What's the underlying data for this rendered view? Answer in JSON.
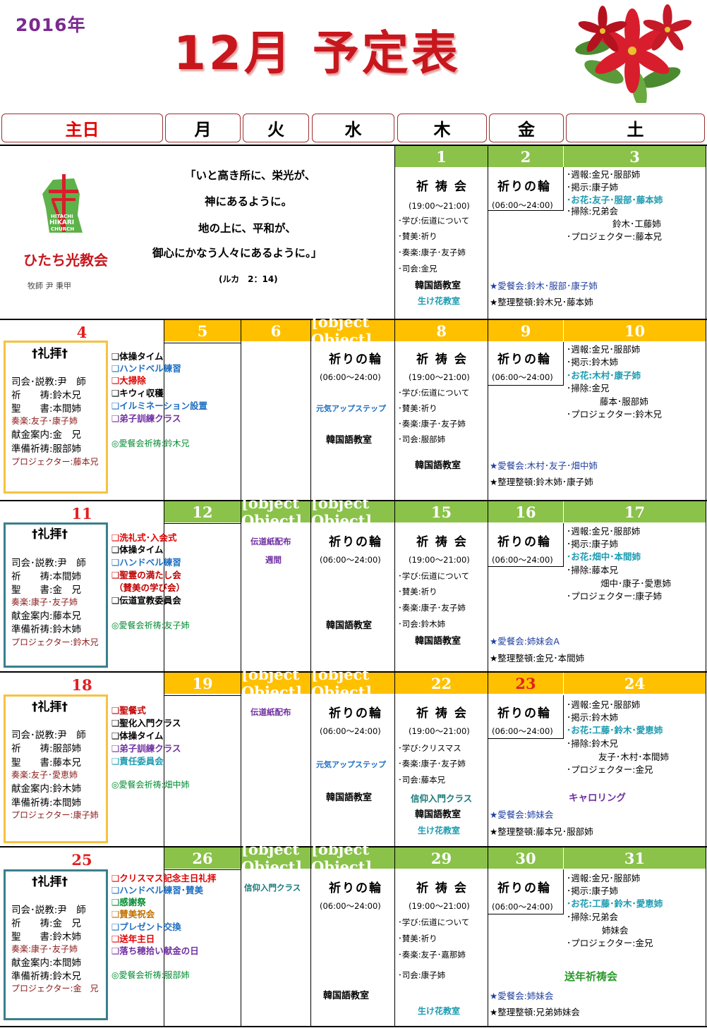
{
  "header": {
    "year": "2016年",
    "title": "12月 予定表"
  },
  "day_headers": [
    "主日",
    "月",
    "火",
    "水",
    "木",
    "金",
    "土"
  ],
  "verse": {
    "lines": [
      "「いと高き所に、栄光が、",
      "神にあるように。",
      "地の上に、平和が、",
      "御心にかなう人々にあるように。」"
    ],
    "ref": "(ルカ　2：14)"
  },
  "church": {
    "name": "ひたち光教会",
    "pastor": "牧師 尹 秉甲",
    "logo_text1": "HITACHI",
    "logo_text2": "HIKARI",
    "logo_text3": "CHURCH"
  },
  "week1": {
    "d1": "1",
    "d2": "2",
    "d3": "3",
    "thu": {
      "title": "祈 祷 会",
      "time": "(19:00～21:00)",
      "a": "･学び:伝道について",
      "b": "･賛美:祈り",
      "c": "･奏楽:康子･友子姉",
      "d": "･司会:金兄",
      "e": "韓国語教室",
      "f": "生け花教室"
    },
    "fri": {
      "title": "祈りの輪",
      "time": "(06:00～24:00)",
      "agape": "★愛餐会:鈴木･服部･康子姉",
      "clean": "★整理整頓:鈴木兄･藤本姉"
    },
    "sat": {
      "a": "･週報:金兄･服部姉",
      "b": "･掲示:康子姉",
      "c": "･お花:友子･服部･藤本姉",
      "d": "･掃除:兄弟会",
      "e": "鈴木･工藤姉",
      "f": "･プロジェクター:藤本兄"
    }
  },
  "week2": {
    "sun": "4",
    "mon": "5",
    "tue": "6",
    "wed": {
      "title": "祈りの輪",
      "time": "(06:00～24:00)",
      "genki": "元気アップステップ",
      "korean": "韓国語教室"
    },
    "thu_n": "8",
    "fri_n": "9",
    "sat_n": "10",
    "worship": {
      "title": "†礼拝†",
      "a": "司会･説教:尹　師",
      "b": "祈　　祷:鈴木兄",
      "c": "聖　　書:本間姉",
      "d": "奏楽:友子･康子姉",
      "e": "献金案内:金　兄",
      "f": "準備祈祷:服部姉",
      "g": "プロジェクター:藤本兄"
    },
    "mon_items": [
      "❑体操タイム",
      "❑ハンドベル練習",
      "❑大掃除",
      "❑キウィ収穫",
      "❑イルミネーション設置",
      "❑弟子訓練クラス"
    ],
    "mon_pray": "◎愛餐会祈祷:鈴木兄",
    "thu": {
      "title": "祈 祷 会",
      "time": "(19:00～21:00)",
      "a": "･学び:伝道について",
      "b": "･賛美:祈り",
      "c": "･奏楽:康子･友子姉",
      "d": "･司会:服部姉",
      "e": "韓国語教室"
    },
    "fri": {
      "title": "祈りの輪",
      "time": "(06:00～24:00)",
      "agape": "★愛餐会:木村･友子･畑中姉",
      "clean": "★整理整頓:鈴木姉･康子姉"
    },
    "sat": {
      "a": "･週報:金兄･服部姉",
      "b": "･掲示:鈴木姉",
      "c": "･お花:木村･康子姉",
      "d": "･掃除:金兄",
      "e": "藤本･服部姉",
      "f": "･プロジェクター:鈴木兄"
    }
  },
  "week3": {
    "sun": "11",
    "mon": "12",
    "tue": {
      "a": "伝道紙配布",
      "b": "週間"
    },
    "wed": {
      "title": "祈りの輪",
      "time": "(06:00～24:00)",
      "korean": "韓国語教室"
    },
    "thu_n": "15",
    "fri_n": "16",
    "sat_n": "17",
    "worship": {
      "title": "†礼拝†",
      "a": "司会･説教:尹　師",
      "b": "祈　　祷:本間姉",
      "c": "聖　　書:金　兄",
      "d": "奏楽:康子･友子姉",
      "e": "献金案内:藤本兄",
      "f": "準備祈祷:鈴木姉",
      "g": "プロジェクター:鈴木兄"
    },
    "mon_items": [
      "❑洗礼式･入会式",
      "❑体操タイム",
      "❑ハンドベル練習",
      "❑聖霊の満たし会",
      "（賛美の学び会）",
      "❑伝道宣教委員会"
    ],
    "mon_pray": "◎愛餐会祈祷:友子姉",
    "thu": {
      "title": "祈 祷 会",
      "time": "(19:00～21:00)",
      "a": "･学び:伝道について",
      "b": "･賛美:祈り",
      "c": "･奏楽:康子･友子姉",
      "d": "･司会:鈴木姉",
      "e": "韓国語教室"
    },
    "fri": {
      "title": "祈りの輪",
      "time": "(06:00～24:00)",
      "agape": "★愛餐会:姉妹会A",
      "clean": "★整理整頓:金兄･本間姉"
    },
    "sat": {
      "a": "･週報:金兄･服部姉",
      "b": "･掲示:康子姉",
      "c": "･お花:畑中･本間姉",
      "d": "･掃除:藤本兄",
      "e": "畑中･康子･愛恵姉",
      "f": "･プロジェクター:康子姉"
    }
  },
  "week4": {
    "sun": "18",
    "mon": "19",
    "tue": {
      "a": "伝道紙配布"
    },
    "wed": {
      "title": "祈りの輪",
      "time": "(06:00～24:00)",
      "genki": "元気アップステップ",
      "korean": "韓国語教室"
    },
    "thu_n": "22",
    "fri_n": "23",
    "sat_n": "24",
    "worship": {
      "title": "†礼拝†",
      "a": "司会･説教:尹　師",
      "b": "祈　　祷:服部姉",
      "c": "聖　　書:藤本兄",
      "d": "奏楽:友子･愛恵姉",
      "e": "献金案内:鈴木姉",
      "f": "準備祈祷:本間姉",
      "g": "プロジェクター:康子姉"
    },
    "mon_items": [
      "❑聖餐式",
      "❑聖化入門クラス",
      "❑体操タイム",
      "❑弟子訓練クラス",
      "❑責任委員会"
    ],
    "mon_pray": "◎愛餐会祈祷:畑中姉",
    "thu": {
      "title": "祈 祷 会",
      "time": "(19:00～21:00)",
      "a": "･学び:クリスマス",
      "b": "･奏楽:康子･友子姉",
      "c": "･司会:藤本兄",
      "d": "信仰入門クラス",
      "e": "韓国語教室",
      "f": "生け花教室"
    },
    "fri": {
      "title": "祈りの輪",
      "time": "(06:00～24:00)",
      "agape": "★愛餐会:姉妹会",
      "clean": "★整理整頓:藤本兄･服部姉"
    },
    "sat": {
      "a": "･週報:金兄･服部姉",
      "b": "･掲示:鈴木姉",
      "c": "･お花:工藤･鈴木･愛恵姉",
      "d": "･掃除:鈴木兄",
      "e": "友子･木村･本間姉",
      "f": "･プロジェクター:金兄",
      "g": "キャロリング"
    }
  },
  "week5": {
    "sun": "25",
    "mon": "26",
    "tue": {
      "a": "信仰入門クラス"
    },
    "wed": {
      "title": "祈りの輪",
      "time": "(06:00～24:00)",
      "korean": "韓国語教室"
    },
    "thu_n": "29",
    "fri_n": "30",
    "sat_n": "31",
    "worship": {
      "title": "†礼拝†",
      "a": "司会･説教:尹　師",
      "b": "祈　　祷:金　兄",
      "c": "聖　　書:鈴木姉",
      "d": "奏楽:康子･友子姉",
      "e": "献金案内:本間姉",
      "f": "準備祈祷:鈴木兄",
      "g": "プロジェクター:金　兄"
    },
    "mon_items": [
      "❑クリスマス記念主日礼拝",
      "❑ハンドベル練習･賛美",
      "❑感謝祭",
      "❑賛美祝会",
      "❑プレゼント交換",
      "❑送年主日",
      "❑落ち穂拾い献金の日"
    ],
    "mon_pray": "◎愛餐会祈祷:服部姉",
    "thu": {
      "title": "祈 祷 会",
      "time": "(19:00～21:00)",
      "a": "･学び:伝道について",
      "b": "･賛美:祈り",
      "c": "･奏楽:友子･嘉那姉",
      "d": "･司会:康子姉",
      "e": "生け花教室"
    },
    "fri": {
      "title": "祈りの輪",
      "time": "(06:00～24:00)",
      "agape": "★愛餐会:姉妹会",
      "clean": "★整理整頓:兄弟姉妹会"
    },
    "sat": {
      "a": "･週報:金兄･服部姉",
      "b": "･掲示:康子姉",
      "c": "･お花:工藤･鈴木･愛恵姉",
      "d": "･掃除:兄弟会",
      "e": "姉妹会",
      "f": "･プロジェクター:金兄",
      "g": "送年祈祷会"
    }
  }
}
